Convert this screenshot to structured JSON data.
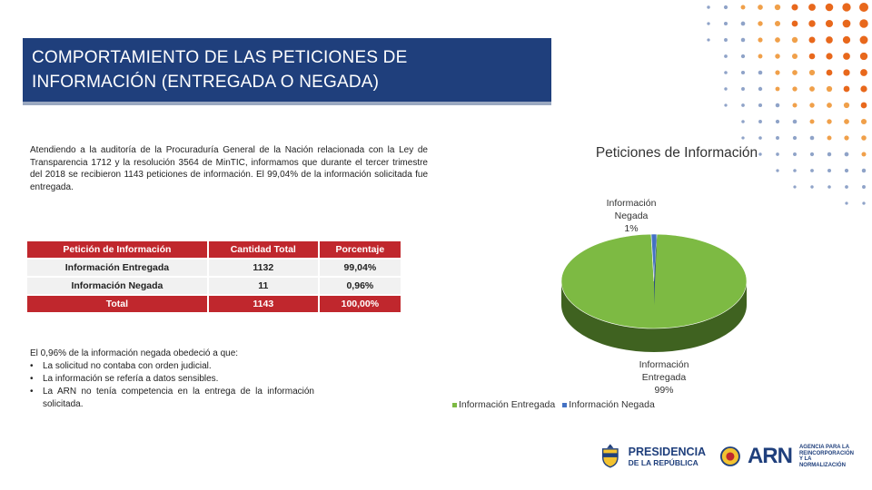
{
  "header": {
    "title_line1": "COMPORTAMIENTO DE LAS PETICIONES DE",
    "title_line2": "INFORMACIÓN (ENTREGADA O NEGADA)"
  },
  "intro_text": "Atendiendo a la auditoría de la Procuraduría General de la Nación relacionada con la Ley de Transparencia 1712 y la resolución 3564 de MinTIC, informamos que durante el tercer trimestre del 2018 se recibieron 1143 peticiones de información. El 99,04% de la información solicitada fue entregada.",
  "table": {
    "headers": [
      "Petición de Información",
      "Cantidad Total",
      "Porcentaje"
    ],
    "rows": [
      [
        "Información Entregada",
        "1132",
        "99,04%"
      ],
      [
        "Información Negada",
        "11",
        "0,96%"
      ]
    ],
    "total": [
      "Total",
      "1143",
      "100,00%"
    ]
  },
  "notes": {
    "intro": "El 0,96% de la información negada obedeció a que:",
    "items": [
      "La solicitud no contaba con orden judicial.",
      "La información se refería a datos sensibles.",
      "La ARN no tenía competencia en la entrega de la información solicitada."
    ]
  },
  "chart_data": {
    "type": "pie",
    "title": "Peticiones de Información",
    "categories": [
      "Información Entregada",
      "Información Negada"
    ],
    "values": [
      99.04,
      0.96
    ],
    "data_labels": [
      {
        "line1": "Información",
        "line2": "Entregada",
        "line3": "99%"
      },
      {
        "line1": "Información",
        "line2": "Negada",
        "line3": "1%"
      }
    ],
    "colors": [
      "#7dba43",
      "#4472c4"
    ],
    "side_colors": [
      "#3f6220",
      "#2c4c86"
    ],
    "legend_position": "bottom",
    "three_d": true
  },
  "logos": {
    "presidencia_line1": "PRESIDENCIA",
    "presidencia_line2": "DE LA REPÚBLICA",
    "arn_name": "ARN",
    "arn_l1": "AGENCIA PARA LA",
    "arn_l2": "REINCORPORACIÓN",
    "arn_l3": "Y LA NORMALIZACIÓN"
  }
}
